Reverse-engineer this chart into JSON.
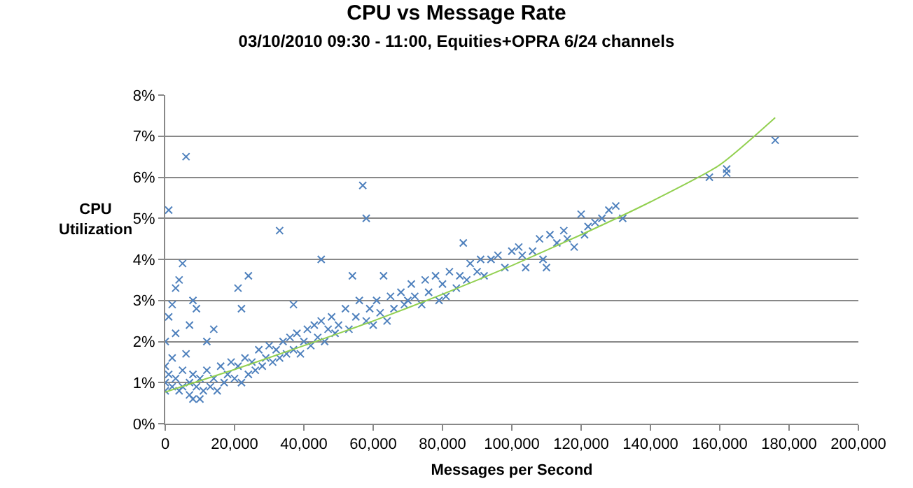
{
  "chart_data": {
    "type": "scatter",
    "title": "CPU vs Message Rate",
    "subtitle": "03/10/2010 09:30 - 11:00, Equities+OPRA 6/24 channels",
    "xlabel": "Messages per Second",
    "ylabel": "CPU Utilization",
    "xlim": [
      0,
      200000
    ],
    "xticks": [
      {
        "value": 0,
        "label": "0"
      },
      {
        "value": 20000,
        "label": "20,000"
      },
      {
        "value": 40000,
        "label": "40,000"
      },
      {
        "value": 60000,
        "label": "60,000"
      },
      {
        "value": 80000,
        "label": "80,000"
      },
      {
        "value": 100000,
        "label": "100,000"
      },
      {
        "value": 120000,
        "label": "120,000"
      },
      {
        "value": 140000,
        "label": "140,000"
      },
      {
        "value": 160000,
        "label": "160,000"
      },
      {
        "value": 180000,
        "label": "180,000"
      },
      {
        "value": 200000,
        "label": "200,000"
      }
    ],
    "ylim": [
      0,
      8
    ],
    "yticks": [
      {
        "value": 0,
        "label": "0%"
      },
      {
        "value": 1,
        "label": "1%"
      },
      {
        "value": 2,
        "label": "2%"
      },
      {
        "value": 3,
        "label": "3%"
      },
      {
        "value": 4,
        "label": "4%"
      },
      {
        "value": 5,
        "label": "5%"
      },
      {
        "value": 6,
        "label": "6%"
      },
      {
        "value": 7,
        "label": "7%"
      },
      {
        "value": 8,
        "label": "8%"
      }
    ],
    "grid": "y",
    "legend": false,
    "marker": "cross",
    "series": [
      {
        "color": "#4f81bd",
        "x": [
          1000,
          6000,
          5000,
          3000,
          4000,
          2000,
          8000,
          9000,
          1000,
          7000,
          24000,
          21000,
          22000,
          33000,
          45000,
          57000,
          58000,
          54000,
          63000,
          86000,
          37000,
          0,
          14000,
          3000,
          12000,
          0,
          0,
          0,
          1000,
          2000,
          2000,
          3000,
          4000,
          5000,
          5000,
          6000,
          7000,
          7000,
          8000,
          8000,
          9000,
          10000,
          10000,
          11000,
          12000,
          13000,
          14000,
          15000,
          16000,
          17000,
          18000,
          19000,
          20000,
          21000,
          22000,
          23000,
          24000,
          25000,
          26000,
          27000,
          28000,
          29000,
          30000,
          31000,
          32000,
          33000,
          34000,
          35000,
          36000,
          37000,
          38000,
          39000,
          40000,
          41000,
          42000,
          43000,
          44000,
          45000,
          46000,
          47000,
          48000,
          49000,
          50000,
          52000,
          53000,
          55000,
          56000,
          58000,
          59000,
          60000,
          61000,
          62000,
          64000,
          65000,
          66000,
          68000,
          69000,
          70000,
          71000,
          72000,
          74000,
          75000,
          76000,
          78000,
          79000,
          80000,
          81000,
          82000,
          84000,
          85000,
          87000,
          88000,
          90000,
          91000,
          92000,
          94000,
          96000,
          98000,
          100000,
          102000,
          103000,
          104000,
          106000,
          108000,
          109000,
          110000,
          111000,
          113000,
          115000,
          116000,
          118000,
          120000,
          121000,
          122000,
          124000,
          126000,
          128000,
          130000,
          132000,
          157000,
          162000,
          162000,
          176000
        ],
        "values": [
          5.2,
          6.5,
          3.9,
          3.3,
          3.5,
          2.9,
          3.0,
          2.8,
          2.6,
          2.4,
          3.6,
          3.3,
          2.8,
          4.7,
          4.0,
          5.8,
          5.0,
          3.6,
          3.6,
          4.4,
          2.9,
          2.0,
          2.3,
          2.2,
          2.0,
          1.0,
          1.4,
          0.8,
          1.2,
          0.9,
          1.6,
          1.1,
          0.8,
          1.3,
          0.9,
          1.7,
          1.0,
          0.7,
          1.2,
          0.6,
          0.9,
          1.1,
          0.6,
          0.8,
          1.3,
          0.9,
          1.1,
          0.8,
          1.4,
          1.0,
          1.2,
          1.5,
          1.1,
          1.4,
          1.0,
          1.6,
          1.2,
          1.5,
          1.3,
          1.8,
          1.4,
          1.6,
          1.9,
          1.5,
          1.8,
          1.6,
          2.0,
          1.7,
          2.1,
          1.8,
          2.2,
          1.7,
          2.0,
          2.3,
          1.9,
          2.4,
          2.1,
          2.5,
          2.0,
          2.3,
          2.6,
          2.2,
          2.4,
          2.8,
          2.3,
          2.6,
          3.0,
          2.5,
          2.8,
          2.4,
          3.0,
          2.7,
          2.5,
          3.1,
          2.8,
          3.2,
          2.9,
          3.0,
          3.4,
          3.1,
          2.9,
          3.5,
          3.2,
          3.6,
          3.0,
          3.4,
          3.1,
          3.7,
          3.3,
          3.6,
          3.5,
          3.9,
          3.7,
          4.0,
          3.6,
          4.0,
          4.1,
          3.8,
          4.2,
          4.3,
          4.1,
          3.8,
          4.2,
          4.5,
          4.0,
          3.8,
          4.6,
          4.4,
          4.7,
          4.5,
          4.3,
          5.1,
          4.6,
          4.8,
          4.9,
          5.0,
          5.2,
          5.3,
          5.0,
          6.0,
          6.2,
          6.1,
          6.9
        ]
      },
      {
        "type": "line",
        "color": "#92d050",
        "marker": "none",
        "x": [
          0,
          20000,
          40000,
          60000,
          80000,
          100000,
          120000,
          140000,
          160000,
          176000
        ],
        "values": [
          0.77,
          1.32,
          1.9,
          2.5,
          3.15,
          3.85,
          4.6,
          5.4,
          6.3,
          7.45
        ]
      }
    ]
  }
}
